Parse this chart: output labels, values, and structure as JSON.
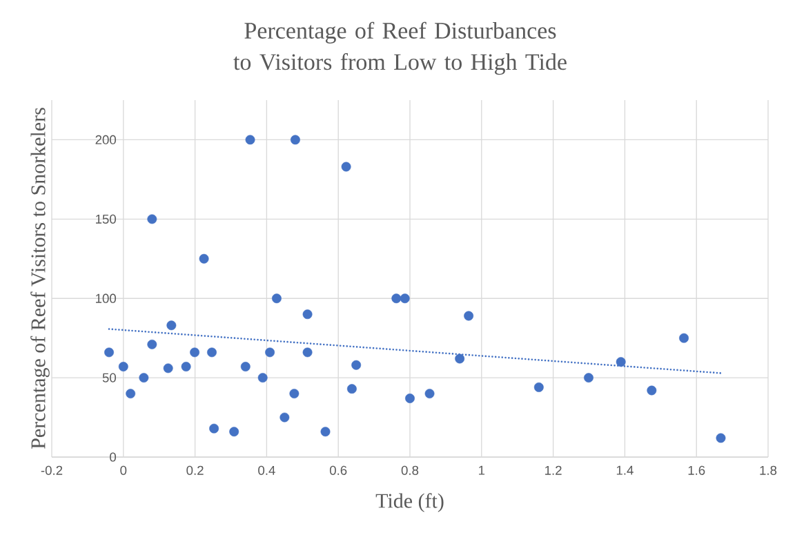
{
  "chart_data": {
    "type": "scatter",
    "title": "Percentage of Reef Disturbances to Visitors from Low to High Tide",
    "xlabel": "Tide (ft)",
    "ylabel": "Percentage of Reef Visitors to Snorkelers",
    "xlim": [
      -0.2,
      1.8
    ],
    "ylim": [
      0,
      225
    ],
    "xticks": [
      -0.2,
      0,
      0.2,
      0.4,
      0.6,
      0.8,
      1,
      1.2,
      1.4,
      1.6,
      1.8
    ],
    "yticks": [
      0,
      50,
      100,
      150,
      200
    ],
    "grid": true,
    "marker": "circle",
    "series": [
      {
        "color": "#4472c4",
        "x": [
          -0.04,
          0.0,
          0.02,
          0.057,
          0.08,
          0.08,
          0.125,
          0.134,
          0.175,
          0.199,
          0.225,
          0.247,
          0.253,
          0.309,
          0.341,
          0.354,
          0.389,
          0.409,
          0.428,
          0.45,
          0.477,
          0.48,
          0.514,
          0.514,
          0.564,
          0.622,
          0.638,
          0.65,
          0.762,
          0.786,
          0.8,
          0.855,
          0.939,
          0.964,
          1.16,
          1.299,
          1.389,
          1.475,
          1.565,
          1.668
        ],
        "values": [
          66,
          57,
          40,
          50,
          71,
          150,
          56,
          83,
          57,
          66,
          125,
          66,
          18,
          16,
          57,
          200,
          50,
          66,
          100,
          25,
          40,
          200,
          90,
          66,
          16,
          183,
          43,
          58,
          100,
          100,
          37,
          40,
          62,
          89,
          44,
          50,
          60,
          42,
          75,
          12
        ]
      },
      {
        "type": "line",
        "color": "#4472c4",
        "line_style": "dotted",
        "marker": "none",
        "x": [
          -0.04,
          1.668
        ],
        "values": [
          80.7,
          52.9
        ]
      }
    ]
  }
}
